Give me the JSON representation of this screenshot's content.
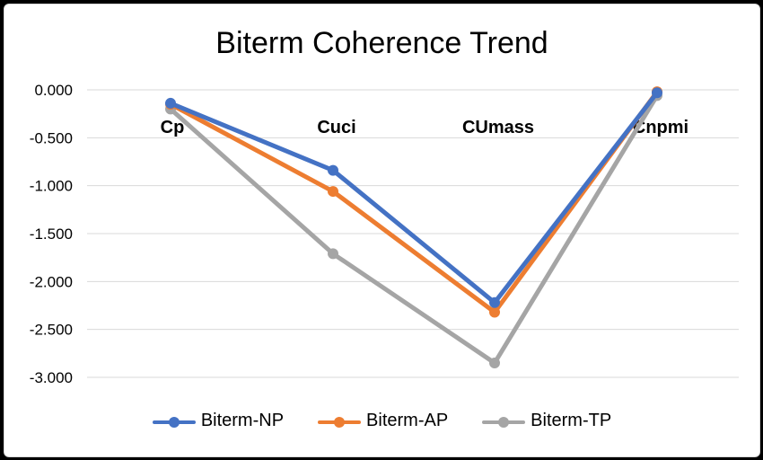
{
  "chart_data": {
    "type": "line",
    "title": "Biterm Coherence Trend",
    "categories": [
      "Cp",
      "Cuci",
      "CUmass",
      "Cnpmi"
    ],
    "ylim": [
      -3.0,
      0.0
    ],
    "yticks": [
      "0.000",
      "-0.500",
      "-1.000",
      "-1.500",
      "-2.000",
      "-2.500",
      "-3.000"
    ],
    "ytick_values": [
      0,
      -0.5,
      -1.0,
      -1.5,
      -2.0,
      -2.5,
      -3.0
    ],
    "grid": true,
    "legend_position": "bottom",
    "series": [
      {
        "name": "Biterm-NP",
        "color": "#4472C4",
        "values": [
          -0.14,
          -0.84,
          -2.22,
          -0.03
        ]
      },
      {
        "name": "Biterm-AP",
        "color": "#ED7D31",
        "values": [
          -0.15,
          -1.06,
          -2.32,
          -0.02
        ]
      },
      {
        "name": "Biterm-TP",
        "color": "#A5A5A5",
        "values": [
          -0.2,
          -1.71,
          -2.85,
          -0.06
        ]
      }
    ]
  }
}
